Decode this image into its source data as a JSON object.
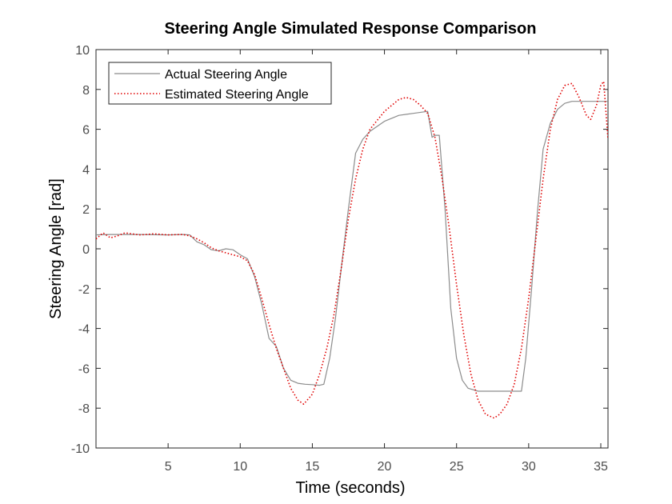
{
  "chart_data": {
    "type": "line",
    "title": "Steering Angle Simulated Response Comparison",
    "xlabel": "Time (seconds)",
    "ylabel": "Steering Angle [rad]",
    "xlim": [
      0,
      35.5
    ],
    "ylim": [
      -10,
      10
    ],
    "xticks": [
      5,
      10,
      15,
      20,
      25,
      30,
      35
    ],
    "yticks": [
      -10,
      -8,
      -6,
      -4,
      -2,
      0,
      2,
      4,
      6,
      8,
      10
    ],
    "grid": false,
    "legend_position": "top-left",
    "series": [
      {
        "name": "Actual Steering Angle",
        "color": "#8c8c8c",
        "style": "solid",
        "points": [
          [
            0,
            0.7
          ],
          [
            1,
            0.72
          ],
          [
            3,
            0.72
          ],
          [
            5,
            0.7
          ],
          [
            6,
            0.72
          ],
          [
            6.5,
            0.7
          ],
          [
            7,
            0.35
          ],
          [
            7.5,
            0.2
          ],
          [
            8,
            -0.05
          ],
          [
            8.5,
            -0.1
          ],
          [
            9,
            0.0
          ],
          [
            9.5,
            -0.05
          ],
          [
            10,
            -0.3
          ],
          [
            10.5,
            -0.5
          ],
          [
            11,
            -1.4
          ],
          [
            11.5,
            -2.8
          ],
          [
            12,
            -4.5
          ],
          [
            12.5,
            -4.9
          ],
          [
            13,
            -6.0
          ],
          [
            13.5,
            -6.6
          ],
          [
            14,
            -6.75
          ],
          [
            14.5,
            -6.8
          ],
          [
            15,
            -6.82
          ],
          [
            15.5,
            -6.85
          ],
          [
            15.8,
            -6.8
          ],
          [
            16.2,
            -5.5
          ],
          [
            16.6,
            -3.5
          ],
          [
            17,
            -1.0
          ],
          [
            17.5,
            2.0
          ],
          [
            18,
            4.8
          ],
          [
            18.5,
            5.5
          ],
          [
            19,
            5.9
          ],
          [
            20,
            6.4
          ],
          [
            21,
            6.7
          ],
          [
            22,
            6.8
          ],
          [
            23,
            6.9
          ],
          [
            23.3,
            5.6
          ],
          [
            23.5,
            5.7
          ],
          [
            23.8,
            5.7
          ],
          [
            24.2,
            2.0
          ],
          [
            24.6,
            -3.0
          ],
          [
            25,
            -5.5
          ],
          [
            25.4,
            -6.6
          ],
          [
            25.8,
            -7.0
          ],
          [
            26.5,
            -7.15
          ],
          [
            27.5,
            -7.15
          ],
          [
            28.5,
            -7.15
          ],
          [
            29.5,
            -7.15
          ],
          [
            29.8,
            -5.5
          ],
          [
            30.2,
            -2.0
          ],
          [
            30.6,
            1.8
          ],
          [
            31,
            5.0
          ],
          [
            31.5,
            6.3
          ],
          [
            32,
            7.0
          ],
          [
            32.5,
            7.3
          ],
          [
            33,
            7.4
          ],
          [
            34,
            7.4
          ],
          [
            35.5,
            7.4
          ]
        ]
      },
      {
        "name": "Estimated Steering Angle",
        "color": "#e00000",
        "style": "dotted",
        "points": [
          [
            0,
            0.5
          ],
          [
            0.5,
            0.8
          ],
          [
            1,
            0.55
          ],
          [
            1.5,
            0.65
          ],
          [
            2,
            0.8
          ],
          [
            2.5,
            0.75
          ],
          [
            3,
            0.7
          ],
          [
            3.5,
            0.72
          ],
          [
            4,
            0.75
          ],
          [
            5,
            0.7
          ],
          [
            6,
            0.72
          ],
          [
            6.5,
            0.65
          ],
          [
            7,
            0.5
          ],
          [
            7.5,
            0.3
          ],
          [
            8,
            0.05
          ],
          [
            8.5,
            -0.1
          ],
          [
            9,
            -0.2
          ],
          [
            9.5,
            -0.3
          ],
          [
            10,
            -0.4
          ],
          [
            10.5,
            -0.6
          ],
          [
            11,
            -1.3
          ],
          [
            11.5,
            -2.5
          ],
          [
            12,
            -3.8
          ],
          [
            12.5,
            -5.0
          ],
          [
            13,
            -6.0
          ],
          [
            13.5,
            -7.0
          ],
          [
            14,
            -7.6
          ],
          [
            14.4,
            -7.8
          ],
          [
            15,
            -7.3
          ],
          [
            15.5,
            -6.3
          ],
          [
            16,
            -5.0
          ],
          [
            16.5,
            -3.3
          ],
          [
            17,
            -1.0
          ],
          [
            17.5,
            1.5
          ],
          [
            18,
            3.5
          ],
          [
            18.5,
            5.0
          ],
          [
            19,
            6.0
          ],
          [
            20,
            6.9
          ],
          [
            21,
            7.5
          ],
          [
            21.5,
            7.6
          ],
          [
            22,
            7.5
          ],
          [
            22.5,
            7.2
          ],
          [
            23,
            6.8
          ],
          [
            23.5,
            5.6
          ],
          [
            24,
            3.5
          ],
          [
            24.5,
            1.0
          ],
          [
            25,
            -1.8
          ],
          [
            25.5,
            -4.3
          ],
          [
            26,
            -6.3
          ],
          [
            26.5,
            -7.6
          ],
          [
            27,
            -8.3
          ],
          [
            27.6,
            -8.5
          ],
          [
            28,
            -8.3
          ],
          [
            28.5,
            -7.8
          ],
          [
            29,
            -6.8
          ],
          [
            29.5,
            -5.0
          ],
          [
            30,
            -2.5
          ],
          [
            30.5,
            0.5
          ],
          [
            31,
            3.5
          ],
          [
            31.5,
            6.0
          ],
          [
            32,
            7.5
          ],
          [
            32.5,
            8.2
          ],
          [
            33,
            8.3
          ],
          [
            33.5,
            7.6
          ],
          [
            34,
            6.7
          ],
          [
            34.3,
            6.5
          ],
          [
            34.7,
            7.2
          ],
          [
            35,
            8.2
          ],
          [
            35.2,
            8.4
          ],
          [
            35.5,
            5.5
          ]
        ]
      }
    ]
  }
}
